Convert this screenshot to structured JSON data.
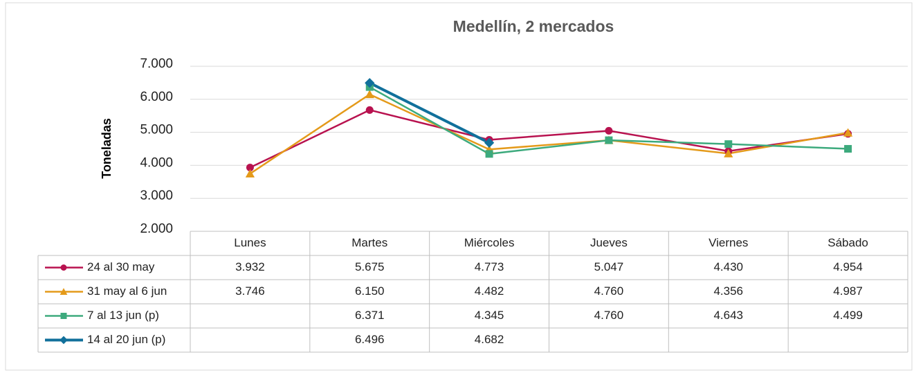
{
  "chart_data": {
    "type": "line",
    "title": "Medellín, 2 mercados",
    "y_label": "Toneladas",
    "categories": [
      "Lunes",
      "Martes",
      "Miércoles",
      "Jueves",
      "Viernes",
      "Sábado"
    ],
    "series": [
      {
        "name": "24 al 30 may",
        "color": "#b8124f",
        "marker": "circle",
        "values": [
          3932,
          5675,
          4773,
          5047,
          4430,
          4954
        ],
        "value_labels": [
          "3.932",
          "5.675",
          "4.773",
          "5.047",
          "4.430",
          "4.954"
        ]
      },
      {
        "name": "31 may al 6 jun",
        "color": "#e49a1a",
        "marker": "triangle",
        "values": [
          3746,
          6150,
          4482,
          4760,
          4356,
          4987
        ],
        "value_labels": [
          "3.746",
          "6.150",
          "4.482",
          "4.760",
          "4.356",
          "4.987"
        ]
      },
      {
        "name": "7 al 13 jun (p)",
        "color": "#3daa7d",
        "marker": "square",
        "values": [
          null,
          6371,
          4345,
          4760,
          4643,
          4499
        ],
        "value_labels": [
          null,
          "6.371",
          "4.345",
          "4.760",
          "4.643",
          "4.499"
        ]
      },
      {
        "name": "14 al 20 jun (p)",
        "color": "#11709b",
        "marker": "diamond",
        "values": [
          null,
          6496,
          4682,
          null,
          null,
          null
        ],
        "value_labels": [
          null,
          "6.496",
          "4.682",
          null,
          null,
          null
        ]
      }
    ],
    "ylim": [
      2000,
      7000
    ],
    "yticks": [
      {
        "value": 2000,
        "label": "2.000"
      },
      {
        "value": 3000,
        "label": "3.000"
      },
      {
        "value": 4000,
        "label": "4.000"
      },
      {
        "value": 5000,
        "label": "5.000"
      },
      {
        "value": 6000,
        "label": "6.000"
      },
      {
        "value": 7000,
        "label": "7.000"
      }
    ],
    "grid": true,
    "legend": "data-table"
  }
}
